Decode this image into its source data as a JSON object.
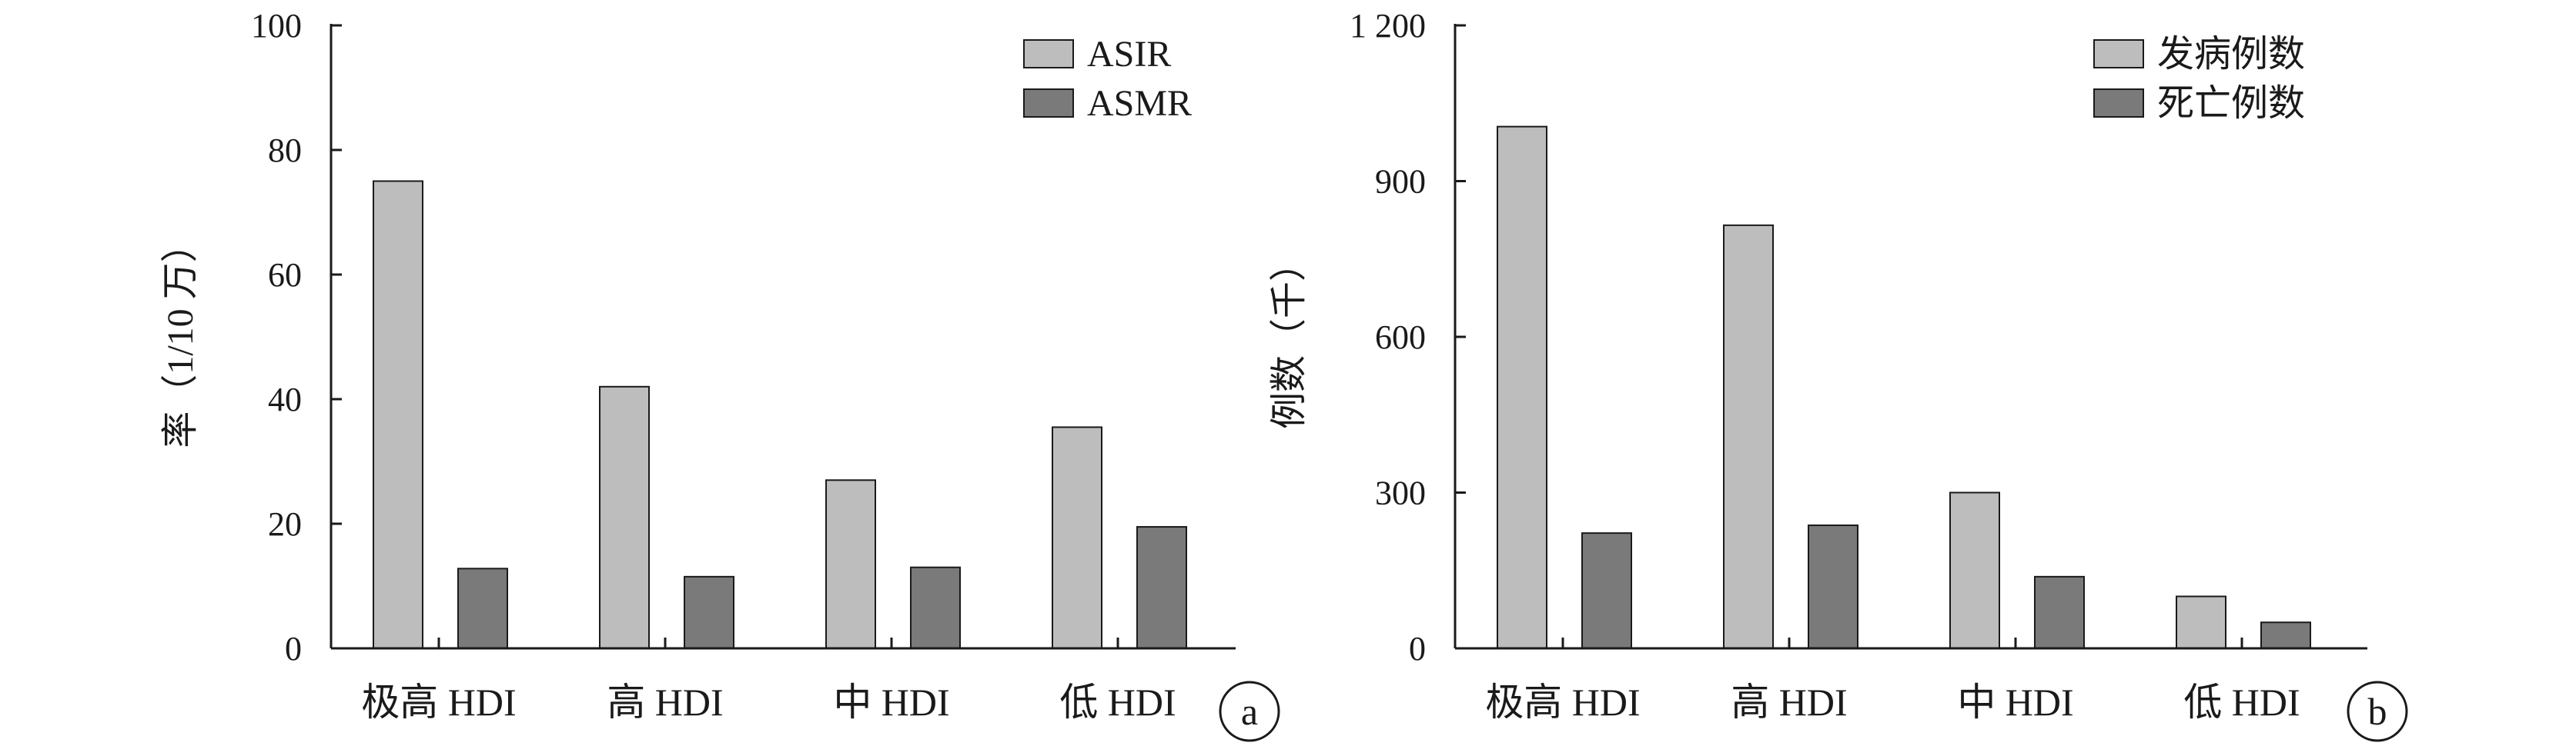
{
  "chart_data": [
    {
      "type": "bar",
      "panel_label": "a",
      "categories": [
        "极高 HDI",
        "高 HDI",
        "中 HDI",
        "低 HDI"
      ],
      "series": [
        {
          "name": "ASIR",
          "values": [
            75.0,
            42.0,
            27.0,
            35.5
          ],
          "color": "#bdbdbd"
        },
        {
          "name": "ASMR",
          "values": [
            12.8,
            11.5,
            13.0,
            19.5
          ],
          "color": "#7a7a7a"
        }
      ],
      "title": "",
      "xlabel": "",
      "ylabel": "率（1/10 万）",
      "ylim": [
        0,
        100
      ],
      "yticks": [
        {
          "value": 0,
          "label": "0"
        },
        {
          "value": 20,
          "label": "20"
        },
        {
          "value": 40,
          "label": "40"
        },
        {
          "value": 60,
          "label": "60"
        },
        {
          "value": 80,
          "label": "80"
        },
        {
          "value": 100,
          "label": "100"
        }
      ],
      "legend_position": "top-right",
      "grid": false
    },
    {
      "type": "bar",
      "panel_label": "b",
      "categories": [
        "极高 HDI",
        "高 HDI",
        "中 HDI",
        "低 HDI"
      ],
      "series": [
        {
          "name": "发病例数",
          "values": [
            1005,
            815,
            300,
            100
          ],
          "color": "#bdbdbd"
        },
        {
          "name": "死亡例数",
          "values": [
            222,
            237,
            138,
            50
          ],
          "color": "#7a7a7a"
        }
      ],
      "title": "",
      "xlabel": "",
      "ylabel": "例数（千）",
      "ylim": [
        0,
        1200
      ],
      "yticks": [
        {
          "value": 0,
          "label": "0"
        },
        {
          "value": 300,
          "label": "300"
        },
        {
          "value": 600,
          "label": "600"
        },
        {
          "value": 900,
          "label": "900"
        },
        {
          "value": 1200,
          "label": "1 200"
        }
      ],
      "legend_position": "top-right",
      "grid": false
    }
  ]
}
